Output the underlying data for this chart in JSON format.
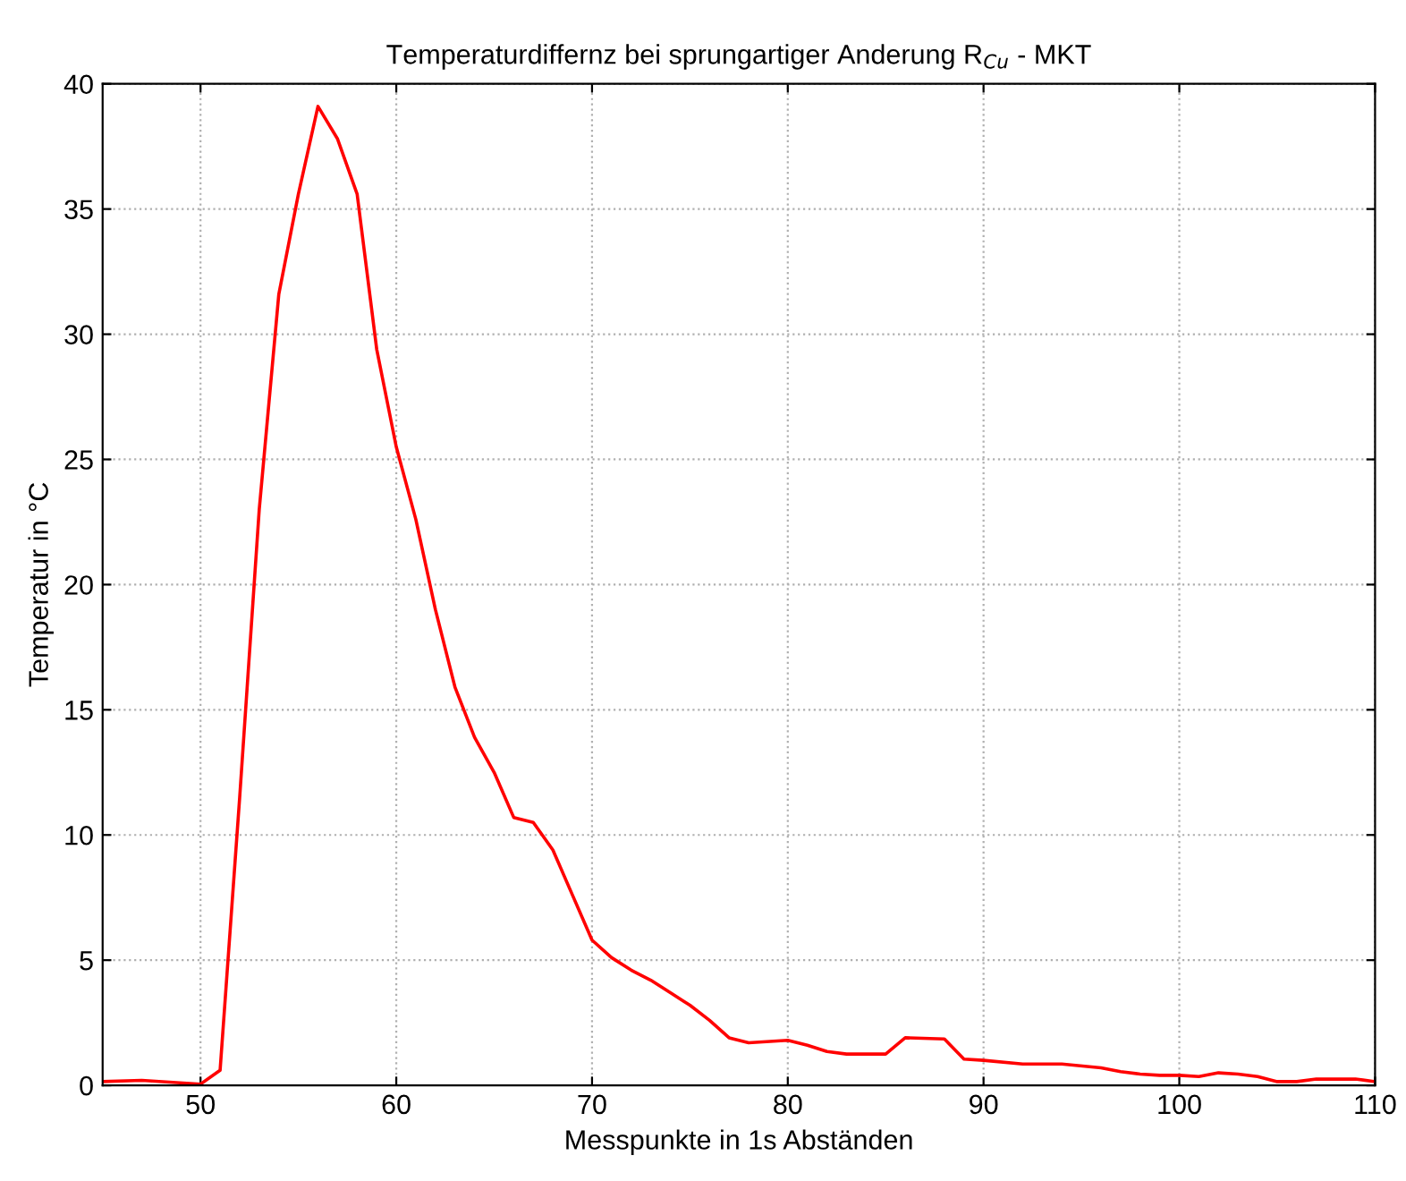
{
  "chart_data": {
    "type": "line",
    "title": "Temperaturdiffernz bei sprungartiger Anderung R$_{Cu}$ - MKT",
    "xlabel": "Messpunkte in 1s Abständen",
    "ylabel": "Temperatur in °C",
    "xlim": [
      45,
      110
    ],
    "xticks": [
      50,
      60,
      70,
      80,
      90,
      100,
      110
    ],
    "ylim": [
      0,
      40
    ],
    "yticks": [
      0,
      5,
      10,
      15,
      20,
      25,
      30,
      35,
      40
    ],
    "grid": true,
    "marker": "none",
    "line_style": "solid",
    "legend": false,
    "series": [
      {
        "color": "#ff0000",
        "x": [
          45,
          47,
          50,
          51,
          52,
          53,
          54,
          55,
          56,
          57,
          58,
          59,
          60,
          61,
          62,
          63,
          64,
          65,
          66,
          67,
          68,
          69,
          70,
          71,
          72,
          73,
          74,
          75,
          76,
          77,
          78,
          80,
          81,
          82,
          83,
          85,
          86,
          88,
          89,
          90,
          92,
          94,
          96,
          97,
          98,
          99,
          100,
          101,
          102,
          103,
          104,
          105,
          106,
          107,
          109,
          110
        ],
        "values": [
          0.15,
          0.2,
          0.05,
          0.6,
          11.5,
          23,
          31.6,
          35.6,
          39.1,
          37.8,
          35.6,
          29.4,
          25.5,
          22.6,
          19,
          15.9,
          13.9,
          12.5,
          10.7,
          10.5,
          9.4,
          7.6,
          5.8,
          5.1,
          4.6,
          4.2,
          3.7,
          3.2,
          2.6,
          1.9,
          1.7,
          1.8,
          1.6,
          1.35,
          1.25,
          1.25,
          1.9,
          1.85,
          1.05,
          1.0,
          0.85,
          0.85,
          0.7,
          0.55,
          0.45,
          0.4,
          0.4,
          0.35,
          0.5,
          0.45,
          0.35,
          0.15,
          0.15,
          0.25,
          0.25,
          0.15
        ]
      }
    ]
  }
}
